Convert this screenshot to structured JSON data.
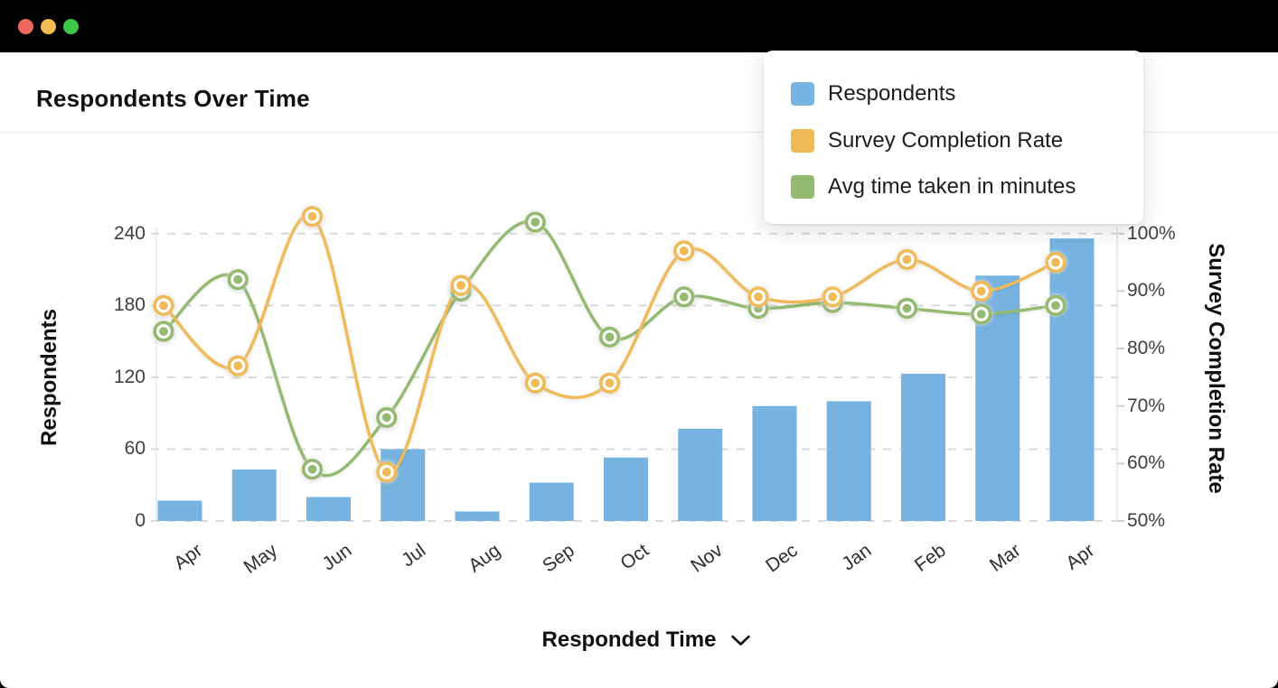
{
  "window": {
    "traffic_lights": {
      "close": "#ee6a5f",
      "minimize": "#f4bd4d",
      "zoom": "#3dc84b"
    },
    "titlebar_color": "#000000"
  },
  "header": {
    "title": "Respondents Over Time"
  },
  "legend": {
    "items": [
      {
        "label": "Respondents",
        "color": "#76b3e0"
      },
      {
        "label": "Survey Completion Rate",
        "color": "#f0ba57"
      },
      {
        "label": "Avg time taken in minutes",
        "color": "#94ba71"
      }
    ]
  },
  "chart_data": {
    "type": "bar",
    "subtype": "combo bar + smooth lines, dual y-axes",
    "categories": [
      "Apr",
      "May",
      "Jun",
      "Jul",
      "Aug",
      "Sep",
      "Oct",
      "Nov",
      "Dec",
      "Jan",
      "Feb",
      "Mar",
      "Apr"
    ],
    "series": [
      {
        "name": "Respondents",
        "type": "bar",
        "axis": "left",
        "color": "#76b3e0",
        "values": [
          17,
          43,
          20,
          60,
          8,
          32,
          53,
          77,
          96,
          100,
          123,
          205,
          236
        ]
      },
      {
        "name": "Survey Completion Rate",
        "type": "line",
        "axis": "right",
        "color": "#f0ba57",
        "values": [
          87.5,
          77,
          103,
          58.5,
          91,
          74,
          74,
          97,
          89,
          89,
          95.5,
          90,
          95
        ]
      },
      {
        "name": "Avg time taken in minutes",
        "type": "line",
        "axis": "right",
        "color": "#94ba71",
        "values": [
          83,
          92,
          59,
          68,
          90,
          102,
          82,
          89,
          87,
          88,
          87,
          86,
          87.5
        ]
      }
    ],
    "left_axis": {
      "title": "Respondents",
      "ticks": [
        0,
        60,
        120,
        180,
        240
      ],
      "range": [
        0,
        240
      ]
    },
    "right_axis": {
      "title": "Survey Completion Rate",
      "ticks": [
        "50%",
        "60%",
        "70%",
        "80%",
        "90%",
        "100%"
      ],
      "range": [
        50,
        100
      ]
    },
    "grid": {
      "horizontal_dashed": true,
      "color": "#d9d9d9"
    },
    "legend_position": "top-right floating card"
  },
  "footer": {
    "x_axis_label": "Responded Time"
  }
}
